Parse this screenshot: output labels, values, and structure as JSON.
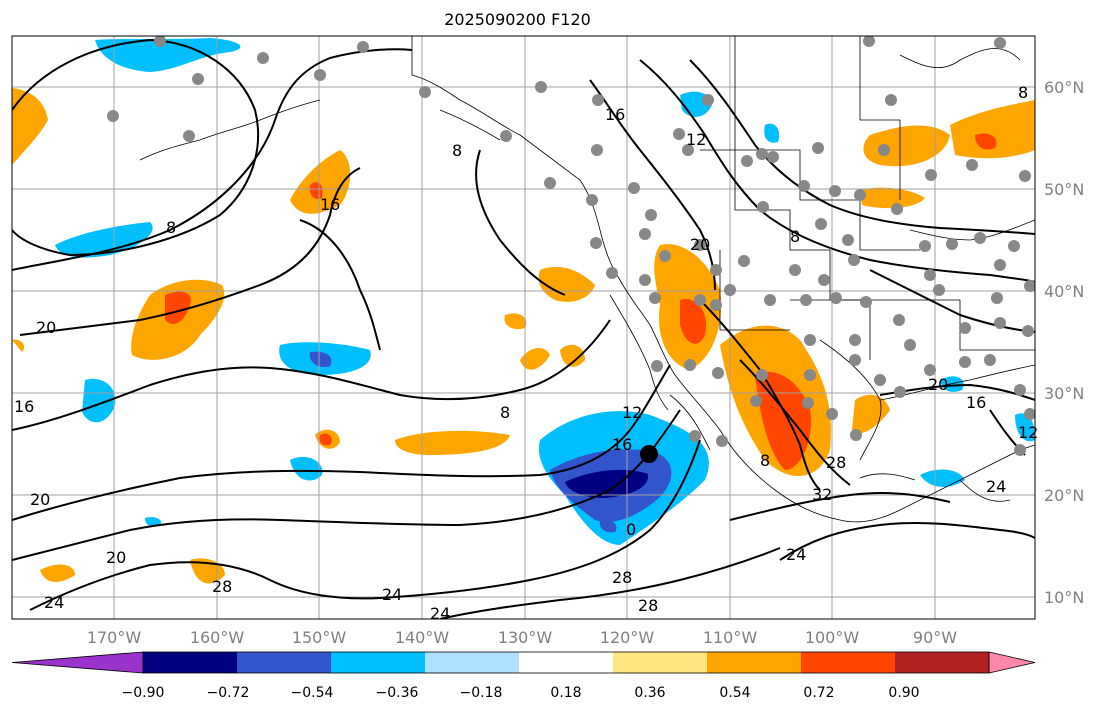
{
  "title": "2025090200 F120",
  "lat_labels": [
    "60°N",
    "50°N",
    "40°N",
    "30°N",
    "20°N",
    "10°N"
  ],
  "lon_labels": [
    "170°W",
    "160°W",
    "150°W",
    "140°W",
    "130°W",
    "120°W",
    "110°W",
    "100°W",
    "90°W"
  ],
  "colorbar": {
    "ticks": [
      "−0.90",
      "−0.72",
      "−0.54",
      "−0.36",
      "−0.18",
      "0.18",
      "0.36",
      "0.54",
      "0.72",
      "0.90"
    ],
    "colors": [
      "#9933cc",
      "#000080",
      "#3355cc",
      "#00bfff",
      "#aee0ff",
      "#ffffff",
      "#ffe680",
      "#ffa500",
      "#ff4500",
      "#b22222",
      "#ff88aa"
    ]
  },
  "contour_labels": [
    "20",
    "16",
    "20",
    "20",
    "24",
    "28",
    "8",
    "8",
    "16",
    "12",
    "8",
    "16",
    "12",
    "0",
    "28",
    "28",
    "24",
    "24",
    "32",
    "24",
    "28",
    "8",
    "20",
    "16",
    "24",
    "20",
    "12",
    "16",
    "8",
    "8"
  ],
  "colors": {
    "orange": "#ffa500",
    "red": "#ff4500",
    "light_blue": "#00bfff",
    "mid_blue": "#3355cc",
    "navy": "#000080",
    "station_dot": "#888888"
  }
}
